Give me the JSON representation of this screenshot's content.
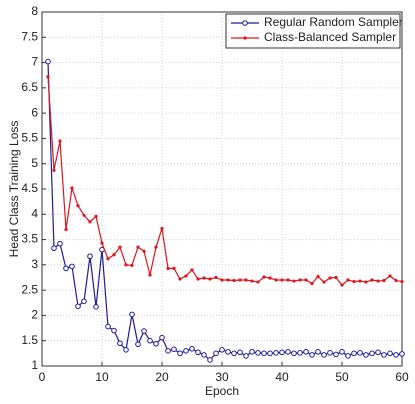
{
  "chart_data": {
    "type": "line",
    "x_label": "Epoch",
    "y_label": "Head Class Training Loss",
    "x": [
      1,
      2,
      3,
      4,
      5,
      6,
      7,
      8,
      9,
      10,
      11,
      12,
      13,
      14,
      15,
      16,
      17,
      18,
      19,
      20,
      21,
      22,
      23,
      24,
      25,
      26,
      27,
      28,
      29,
      30,
      31,
      32,
      33,
      34,
      35,
      36,
      37,
      38,
      39,
      40,
      41,
      42,
      43,
      44,
      45,
      46,
      47,
      48,
      49,
      50,
      51,
      52,
      53,
      54,
      55,
      56,
      57,
      58,
      59,
      60
    ],
    "series": [
      {
        "name": "Regular Random Sampler",
        "color": "#1c1c9c",
        "marker": "circle",
        "values": [
          7.02,
          3.33,
          3.42,
          2.93,
          2.97,
          2.18,
          2.28,
          3.17,
          2.17,
          3.3,
          1.78,
          1.7,
          1.45,
          1.32,
          2.02,
          1.43,
          1.69,
          1.5,
          1.44,
          1.56,
          1.3,
          1.33,
          1.25,
          1.3,
          1.34,
          1.27,
          1.22,
          1.12,
          1.25,
          1.32,
          1.28,
          1.25,
          1.27,
          1.2,
          1.28,
          1.26,
          1.25,
          1.25,
          1.26,
          1.27,
          1.28,
          1.25,
          1.26,
          1.28,
          1.22,
          1.28,
          1.22,
          1.26,
          1.23,
          1.28,
          1.2,
          1.25,
          1.26,
          1.22,
          1.25,
          1.27,
          1.22,
          1.25,
          1.22,
          1.24
        ]
      },
      {
        "name": "Class-Balanced Sampler",
        "color": "#e0141e",
        "marker": "dot",
        "values": [
          6.72,
          4.87,
          5.45,
          3.7,
          4.52,
          4.17,
          3.98,
          3.85,
          3.96,
          3.43,
          3.12,
          3.2,
          3.35,
          3.0,
          2.99,
          3.35,
          3.27,
          2.8,
          3.35,
          3.72,
          2.93,
          2.93,
          2.72,
          2.78,
          2.9,
          2.72,
          2.74,
          2.72,
          2.75,
          2.7,
          2.7,
          2.69,
          2.7,
          2.7,
          2.68,
          2.66,
          2.76,
          2.74,
          2.7,
          2.7,
          2.7,
          2.68,
          2.7,
          2.7,
          2.63,
          2.77,
          2.66,
          2.74,
          2.75,
          2.6,
          2.7,
          2.67,
          2.68,
          2.66,
          2.7,
          2.68,
          2.69,
          2.78,
          2.69,
          2.67
        ]
      }
    ],
    "xlim": [
      0,
      60
    ],
    "xticks": [
      0,
      10,
      20,
      30,
      40,
      50,
      60
    ],
    "ylim": [
      1,
      8
    ],
    "yticks": [
      1,
      1.5,
      2,
      2.5,
      3,
      3.5,
      4,
      4.5,
      5,
      5.5,
      6,
      6.5,
      7,
      7.5,
      8
    ],
    "grid": true,
    "legend": "top-right"
  }
}
